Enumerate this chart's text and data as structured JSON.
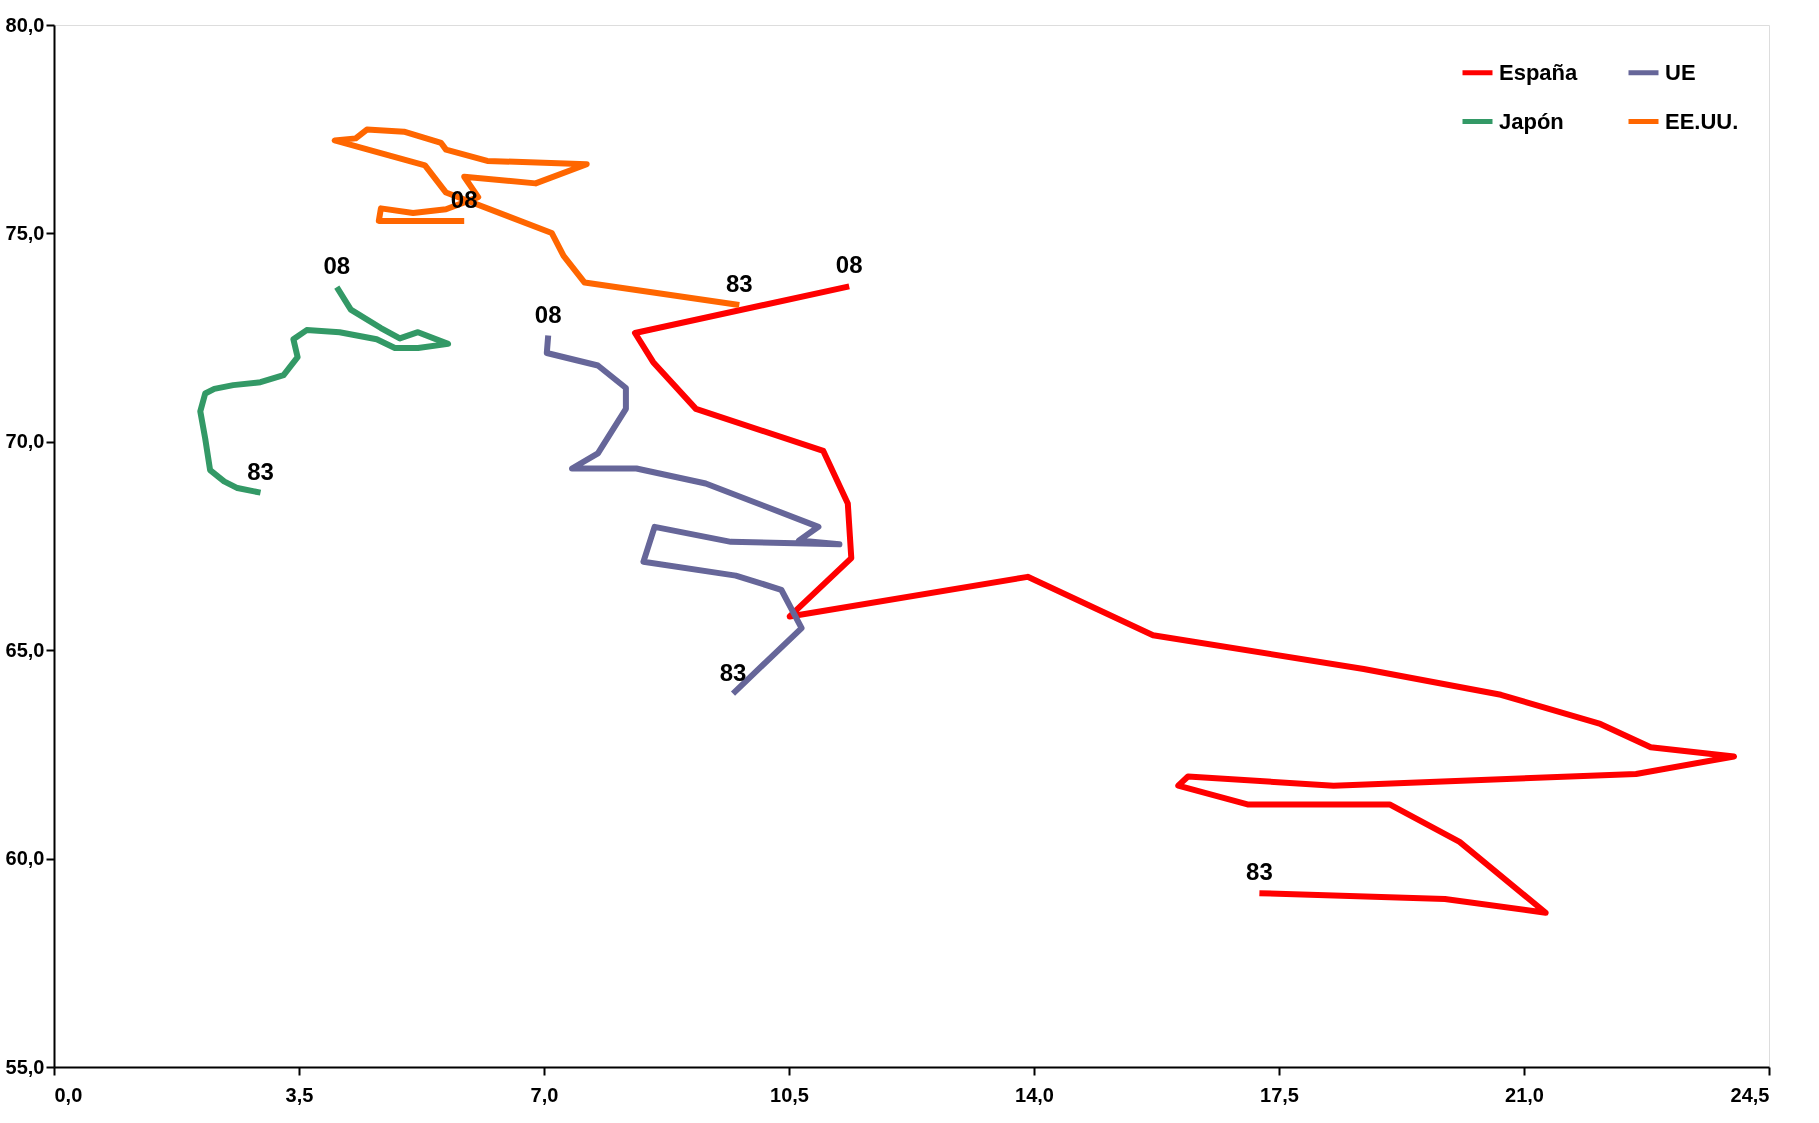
{
  "chart_data": {
    "type": "line",
    "xlim": [
      0,
      24.5
    ],
    "ylim": [
      55,
      80
    ],
    "xticks": [
      {
        "value": 0,
        "label": "0,0"
      },
      {
        "value": 3.5,
        "label": "3,5"
      },
      {
        "value": 7,
        "label": "7,0"
      },
      {
        "value": 10.5,
        "label": "10,5"
      },
      {
        "value": 14,
        "label": "14,0"
      },
      {
        "value": 17.5,
        "label": "17,5"
      },
      {
        "value": 21,
        "label": "21,0"
      },
      {
        "value": 24.5,
        "label": "24,5"
      }
    ],
    "yticks": [
      {
        "value": 55,
        "label": "55,0"
      },
      {
        "value": 60,
        "label": "60,0"
      },
      {
        "value": 65,
        "label": "65,0"
      },
      {
        "value": 70,
        "label": "70,0"
      },
      {
        "value": 75,
        "label": "75,0"
      },
      {
        "value": 80,
        "label": "80,0"
      }
    ],
    "grid": false,
    "legend": "top right",
    "marker": "none",
    "line_style": "solid",
    "series": [
      {
        "name": "España",
        "color": "#ff0000",
        "x": [
          17.22,
          19.87,
          21.31,
          20.08,
          19.08,
          17.05,
          16.06,
          16.2,
          18.28,
          22.6,
          24.0,
          22.81,
          22.09,
          20.67,
          18.71,
          15.7,
          13.91,
          10.51,
          11.39,
          11.34,
          10.99,
          9.17,
          8.56,
          8.3,
          11.36
        ],
        "values": [
          59.17,
          59.03,
          58.7,
          60.4,
          61.3,
          61.3,
          61.75,
          61.97,
          61.75,
          62.03,
          62.45,
          62.67,
          63.23,
          63.93,
          64.55,
          65.36,
          66.76,
          65.81,
          67.21,
          68.52,
          69.78,
          70.79,
          71.91,
          72.61,
          73.73
        ]
      },
      {
        "name": "UE",
        "color": "#666699",
        "x": [
          9.7,
          10.68,
          10.39,
          9.74,
          8.42,
          8.58,
          9.67,
          11.22,
          10.64,
          10.92,
          9.31,
          8.32,
          7.4,
          7.77,
          8.17,
          8.17,
          7.77,
          7.04,
          7.06
        ],
        "values": [
          63.96,
          65.53,
          66.45,
          66.79,
          67.12,
          67.96,
          67.6,
          67.54,
          67.63,
          67.96,
          69.0,
          69.36,
          69.36,
          69.72,
          70.79,
          71.29,
          71.83,
          72.13,
          72.55
        ]
      },
      {
        "name": "Japón",
        "color": "#339966",
        "x": [
          2.95,
          2.62,
          2.43,
          2.23,
          2.16,
          2.09,
          2.16,
          2.29,
          2.56,
          2.95,
          3.28,
          3.48,
          3.42,
          3.61,
          4.08,
          4.61,
          4.87,
          5.2,
          5.63,
          5.2,
          4.94,
          4.67,
          4.24,
          4.04
        ],
        "values": [
          68.78,
          68.89,
          69.05,
          69.32,
          70.08,
          70.73,
          71.16,
          71.27,
          71.36,
          71.43,
          71.6,
          72.03,
          72.46,
          72.68,
          72.63,
          72.46,
          72.25,
          72.25,
          72.35,
          72.63,
          72.48,
          72.73,
          73.17,
          73.71
        ]
      },
      {
        "name": "EE.UU.",
        "color": "#ff6600",
        "x": [
          9.79,
          7.58,
          7.28,
          7.11,
          5.6,
          5.3,
          4.01,
          4.31,
          4.47,
          5.0,
          5.53,
          5.6,
          6.19,
          7.61,
          6.88,
          5.86,
          6.06,
          5.6,
          5.13,
          4.67,
          4.64,
          5.86
        ],
        "values": [
          73.28,
          73.82,
          74.46,
          75.01,
          75.98,
          76.63,
          77.23,
          77.28,
          77.49,
          77.44,
          77.17,
          77.01,
          76.74,
          76.66,
          76.2,
          76.36,
          75.87,
          75.58,
          75.49,
          75.6,
          75.3,
          75.3
        ]
      }
    ],
    "annotations": [
      {
        "text": "83",
        "x": 17.22,
        "y": 59.17
      },
      {
        "text": "08",
        "x": 11.36,
        "y": 73.73
      },
      {
        "text": "83",
        "x": 9.7,
        "y": 63.96
      },
      {
        "text": "08",
        "x": 7.06,
        "y": 72.55
      },
      {
        "text": "83",
        "x": 2.95,
        "y": 68.78
      },
      {
        "text": "08",
        "x": 4.04,
        "y": 73.71
      },
      {
        "text": "83",
        "x": 9.79,
        "y": 73.28
      },
      {
        "text": "08",
        "x": 5.86,
        "y": 75.3
      }
    ]
  }
}
